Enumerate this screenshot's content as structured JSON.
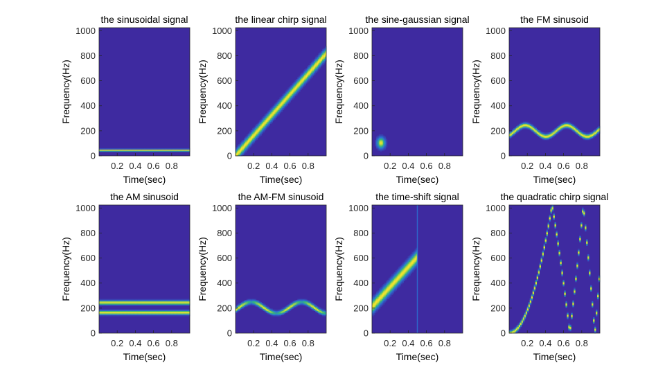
{
  "figure": {
    "background": "#ffffff",
    "layout": "2 rows x 4 columns"
  },
  "colors": {
    "background_field": "#3e2aa0",
    "ridge_core": "#f5e62a",
    "ridge_mid": "#35b779",
    "ridge_edge": "#2a77d6",
    "axis": "#262626"
  },
  "chart_data": [
    {
      "type": "heatmap",
      "id": "sinusoid",
      "title": "the sinusoidal signal",
      "xlabel": "Time(sec)",
      "ylabel": "Frequency(Hz)",
      "xlim": [
        0,
        1
      ],
      "ylim": [
        0,
        1024
      ],
      "xticks": [
        0.2,
        0.4,
        0.6,
        0.8
      ],
      "xtick_labels": [
        "0.2",
        "0.4",
        "0.6",
        "0.8"
      ],
      "yticks": [
        0,
        200,
        400,
        600,
        800,
        1000
      ],
      "ytick_labels": [
        "0",
        "200",
        "400",
        "600",
        "800",
        "1000"
      ],
      "ridges": [
        {
          "t_start": 0,
          "t_end": 1,
          "f0": 45,
          "f1": 45,
          "shape": "constant",
          "halfwidth_hz": 8
        }
      ]
    },
    {
      "type": "heatmap",
      "id": "linear-chirp",
      "title": "the linear chirp signal",
      "xlabel": "Time(sec)",
      "ylabel": "Frequency(Hz)",
      "xlim": [
        0,
        1
      ],
      "ylim": [
        0,
        1024
      ],
      "xticks": [
        0.2,
        0.4,
        0.6,
        0.8
      ],
      "xtick_labels": [
        "0.2",
        "0.4",
        "0.6",
        "0.8"
      ],
      "yticks": [
        0,
        200,
        400,
        600,
        800,
        1000
      ],
      "ytick_labels": [
        "0",
        "200",
        "400",
        "600",
        "800",
        "1000"
      ],
      "ridges": [
        {
          "t_start": 0,
          "t_end": 1,
          "f0": 0,
          "f1": 820,
          "shape": "linear",
          "halfwidth_hz": 40
        }
      ]
    },
    {
      "type": "heatmap",
      "id": "sine-gaussian",
      "title": "the sine-gaussian signal",
      "xlabel": "Time(sec)",
      "ylabel": "Frequency(Hz)",
      "xlim": [
        0,
        1
      ],
      "ylim": [
        0,
        1024
      ],
      "xticks": [
        0.2,
        0.4,
        0.6,
        0.8
      ],
      "xtick_labels": [
        "0.2",
        "0.4",
        "0.6",
        "0.8"
      ],
      "yticks": [
        0,
        200,
        400,
        600,
        800,
        1000
      ],
      "ytick_labels": [
        "0",
        "200",
        "400",
        "600",
        "800",
        "1000"
      ],
      "blobs": [
        {
          "t_center": 0.1,
          "f_center": 105,
          "t_sigma": 0.03,
          "f_sigma": 30
        }
      ]
    },
    {
      "type": "heatmap",
      "id": "fm-sinusoid",
      "title": "the FM sinusoid",
      "xlabel": "Time(sec)",
      "ylabel": "Frequency(Hz)",
      "xlim": [
        0,
        1
      ],
      "ylim": [
        0,
        1024
      ],
      "xticks": [
        0.2,
        0.4,
        0.6,
        0.8
      ],
      "xtick_labels": [
        "0.2",
        "0.4",
        "0.6",
        "0.8"
      ],
      "yticks": [
        0,
        200,
        400,
        600,
        800,
        1000
      ],
      "ytick_labels": [
        "0",
        "200",
        "400",
        "600",
        "800",
        "1000"
      ],
      "ridges": [
        {
          "t_start": 0,
          "t_end": 1,
          "f0": 200,
          "amplitude_hz": 45,
          "mod_freq_hz": 2.2,
          "phase": -0.9,
          "shape": "sine",
          "halfwidth_hz": 18
        }
      ]
    },
    {
      "type": "heatmap",
      "id": "am-sinusoid",
      "title": "the AM sinusoid",
      "xlabel": "Time(sec)",
      "ylabel": "Frequency(Hz)",
      "xlim": [
        0,
        1
      ],
      "ylim": [
        0,
        1024
      ],
      "xticks": [
        0.2,
        0.4,
        0.6,
        0.8
      ],
      "xtick_labels": [
        "0.2",
        "0.4",
        "0.6",
        "0.8"
      ],
      "yticks": [
        0,
        200,
        400,
        600,
        800,
        1000
      ],
      "ytick_labels": [
        "0",
        "200",
        "400",
        "600",
        "800",
        "1000"
      ],
      "ridges": [
        {
          "t_start": 0,
          "t_end": 1,
          "f0": 245,
          "f1": 245,
          "shape": "constant",
          "halfwidth_hz": 16
        },
        {
          "t_start": 0,
          "t_end": 1,
          "f0": 165,
          "f1": 165,
          "shape": "constant",
          "halfwidth_hz": 16
        }
      ]
    },
    {
      "type": "heatmap",
      "id": "am-fm-sinusoid",
      "title": "the AM-FM sinusoid",
      "xlabel": "Time(sec)",
      "ylabel": "Frequency(Hz)",
      "xlim": [
        0,
        1
      ],
      "ylim": [
        0,
        1024
      ],
      "xticks": [
        0.2,
        0.4,
        0.6,
        0.8
      ],
      "xtick_labels": [
        "0.2",
        "0.4",
        "0.6",
        "0.8"
      ],
      "yticks": [
        0,
        200,
        400,
        600,
        800,
        1000
      ],
      "ytick_labels": [
        "0",
        "200",
        "400",
        "600",
        "800",
        "1000"
      ],
      "ridges": [
        {
          "t_start": 0,
          "t_end": 1,
          "f0": 205,
          "amplitude_hz": 45,
          "mod_freq_hz": 1.8,
          "phase": -0.4,
          "shape": "sine",
          "halfwidth_hz": 18,
          "intensity_mod": 0.5
        }
      ]
    },
    {
      "type": "heatmap",
      "id": "time-shift",
      "title": "the time-shift signal",
      "xlabel": "Time(sec)",
      "ylabel": "Frequency(Hz)",
      "xlim": [
        0,
        1
      ],
      "ylim": [
        0,
        1024
      ],
      "xticks": [
        0.2,
        0.4,
        0.6,
        0.8
      ],
      "xtick_labels": [
        "0.2",
        "0.4",
        "0.6",
        "0.8"
      ],
      "yticks": [
        0,
        200,
        400,
        600,
        800,
        1000
      ],
      "ytick_labels": [
        "0",
        "200",
        "400",
        "600",
        "800",
        "1000"
      ],
      "ridges": [
        {
          "t_start": 0,
          "t_end": 0.5,
          "f0": 210,
          "f1": 610,
          "shape": "linear",
          "halfwidth_hz": 50
        }
      ],
      "vertical_lines": [
        {
          "t": 0.5
        }
      ]
    },
    {
      "type": "heatmap",
      "id": "quadratic-chirp",
      "title": "the quadratic chirp signal",
      "xlabel": "Time(sec)",
      "ylabel": "Frequency(Hz)",
      "xlim": [
        0,
        1
      ],
      "ylim": [
        0,
        1024
      ],
      "xticks": [
        0.2,
        0.4,
        0.6,
        0.8
      ],
      "xtick_labels": [
        "0.2",
        "0.4",
        "0.6",
        "0.8"
      ],
      "yticks": [
        0,
        200,
        400,
        600,
        800,
        1000
      ],
      "ytick_labels": [
        "0",
        "200",
        "400",
        "600",
        "800",
        "1000"
      ],
      "ridges": [
        {
          "t_start": 0,
          "t_end": 1,
          "f0": 0,
          "quad_coef_hz": 4600,
          "fold_at_hz": 1024,
          "shape": "quadratic-fold",
          "halfwidth_hz": 18
        }
      ]
    }
  ]
}
